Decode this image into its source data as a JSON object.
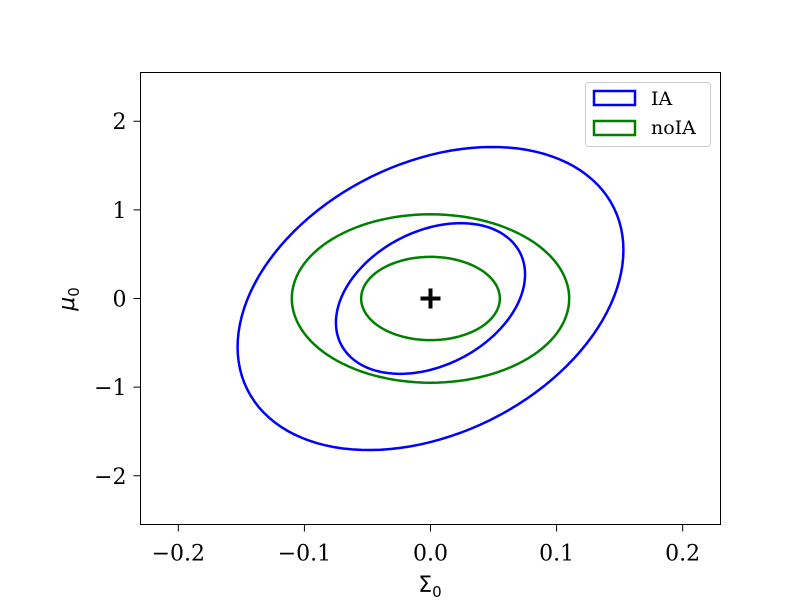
{
  "chart_data": {
    "type": "contour",
    "xlabel": "Σ",
    "xlabel_sub": "0",
    "ylabel": "μ",
    "ylabel_sub": "0",
    "xlim": [
      -0.23,
      0.23
    ],
    "ylim": [
      -2.55,
      2.55
    ],
    "x_ticks": [
      -0.2,
      -0.1,
      0.0,
      0.1,
      0.2
    ],
    "x_tick_labels": [
      "−0.2",
      "−0.1",
      "0.0",
      "0.1",
      "0.2"
    ],
    "y_ticks": [
      -2,
      -1,
      0,
      1,
      2
    ],
    "y_tick_labels": [
      "−2",
      "−1",
      "0",
      "1",
      "2"
    ],
    "grid": false,
    "legend": "top-right",
    "fiducial": {
      "x": 0.0,
      "y": 0.0,
      "marker": "plus"
    },
    "series": [
      {
        "name": "IA",
        "color": "#0000ff",
        "contours": [
          {
            "level": "inner",
            "center": [
              0.0,
              0.0
            ],
            "x_extent": [
              -0.075,
              0.075
            ],
            "y_extent": [
              -0.85,
              0.85
            ],
            "tilt": "positive"
          },
          {
            "level": "outer",
            "center": [
              0.0,
              0.0
            ],
            "x_extent": [
              -0.153,
              0.153
            ],
            "y_extent": [
              -1.71,
              1.71
            ],
            "tilt": "positive"
          }
        ]
      },
      {
        "name": "noIA",
        "color": "#008000",
        "contours": [
          {
            "level": "inner",
            "center": [
              0.0,
              0.0
            ],
            "x_extent": [
              -0.055,
              0.055
            ],
            "y_extent": [
              -0.47,
              0.47
            ],
            "tilt": "none"
          },
          {
            "level": "outer",
            "center": [
              0.0,
              0.0
            ],
            "x_extent": [
              -0.11,
              0.11
            ],
            "y_extent": [
              -0.95,
              0.95
            ],
            "tilt": "none"
          }
        ]
      }
    ]
  }
}
